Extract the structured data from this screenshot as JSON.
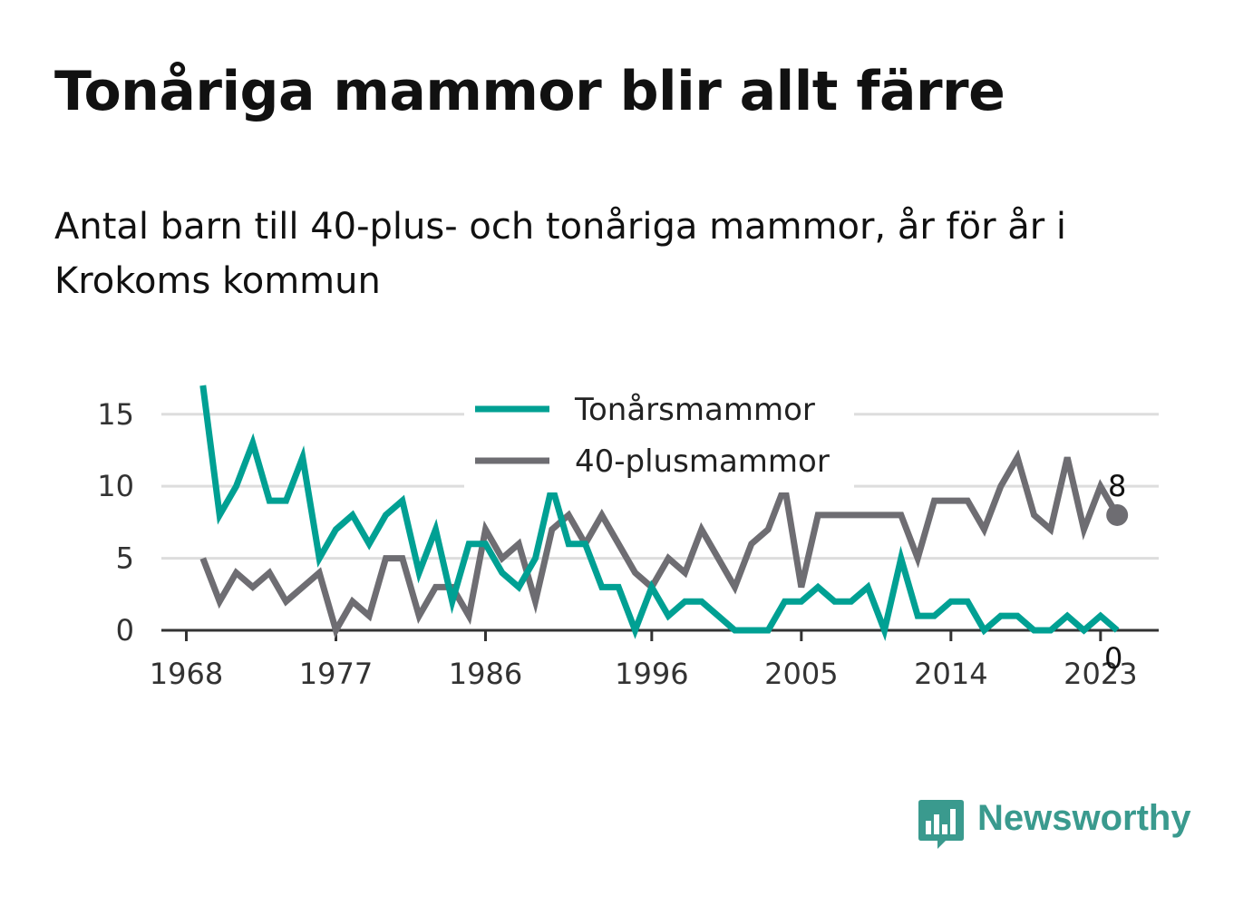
{
  "title": "Tonåriga mammor blir allt färre",
  "subtitle": "Antal barn till 40-plus- och tonåriga mammor, år för år i Krokoms kommun",
  "brand": {
    "name": "Newsworthy",
    "color": "#3a9a8e",
    "icon": "newsworthy-logo-icon"
  },
  "chart_data": {
    "type": "line",
    "title": "Tonåriga mammor blir allt färre",
    "subtitle": "Antal barn till 40-plus- och tonåriga mammor, år för år i Krokoms kommun",
    "x": [
      1969,
      1970,
      1971,
      1972,
      1973,
      1974,
      1975,
      1976,
      1977,
      1978,
      1979,
      1980,
      1981,
      1982,
      1983,
      1984,
      1985,
      1986,
      1987,
      1988,
      1989,
      1990,
      1991,
      1992,
      1993,
      1994,
      1995,
      1996,
      1997,
      1998,
      1999,
      2000,
      2001,
      2002,
      2003,
      2004,
      2005,
      2006,
      2007,
      2008,
      2009,
      2010,
      2011,
      2012,
      2013,
      2014,
      2015,
      2016,
      2017,
      2018,
      2019,
      2020,
      2021,
      2022,
      2023,
      2024
    ],
    "x_ticks": [
      "1968",
      "1977",
      "1986",
      "1996",
      "2005",
      "2014",
      "2023"
    ],
    "x_tick_values": [
      1968,
      1977,
      1986,
      1996,
      2005,
      2014,
      2023
    ],
    "y_ticks": [
      "0",
      "5",
      "10",
      "15"
    ],
    "y_tick_values": [
      0,
      5,
      10,
      15
    ],
    "ylim": [
      0,
      17
    ],
    "xlim": [
      1966.5,
      2026.5
    ],
    "grid": "horizontal",
    "legend_position": "top-center",
    "series": [
      {
        "name": "Tonårsmammor",
        "color": "#00a093",
        "values": [
          17,
          8,
          10,
          13,
          9,
          9,
          12,
          5,
          7,
          8,
          6,
          8,
          9,
          4,
          7,
          2,
          6,
          6,
          4,
          3,
          5,
          10,
          6,
          6,
          3,
          3,
          0,
          3,
          1,
          2,
          2,
          1,
          0,
          0,
          0,
          2,
          2,
          3,
          2,
          2,
          3,
          0,
          5,
          1,
          1,
          2,
          2,
          0,
          1,
          1,
          0,
          0,
          1,
          0,
          1,
          0
        ],
        "end_label": "0"
      },
      {
        "name": "40-plusmammor",
        "color": "#6e6d72",
        "values": [
          5,
          2,
          4,
          3,
          4,
          2,
          3,
          4,
          0,
          2,
          1,
          5,
          5,
          1,
          3,
          3,
          1,
          7,
          5,
          6,
          2,
          7,
          8,
          6,
          8,
          6,
          4,
          3,
          5,
          4,
          7,
          5,
          3,
          6,
          7,
          10,
          3,
          8,
          8,
          8,
          8,
          8,
          8,
          5,
          9,
          9,
          9,
          7,
          10,
          12,
          8,
          7,
          12,
          7,
          10,
          8
        ],
        "end_label": "8"
      }
    ]
  }
}
